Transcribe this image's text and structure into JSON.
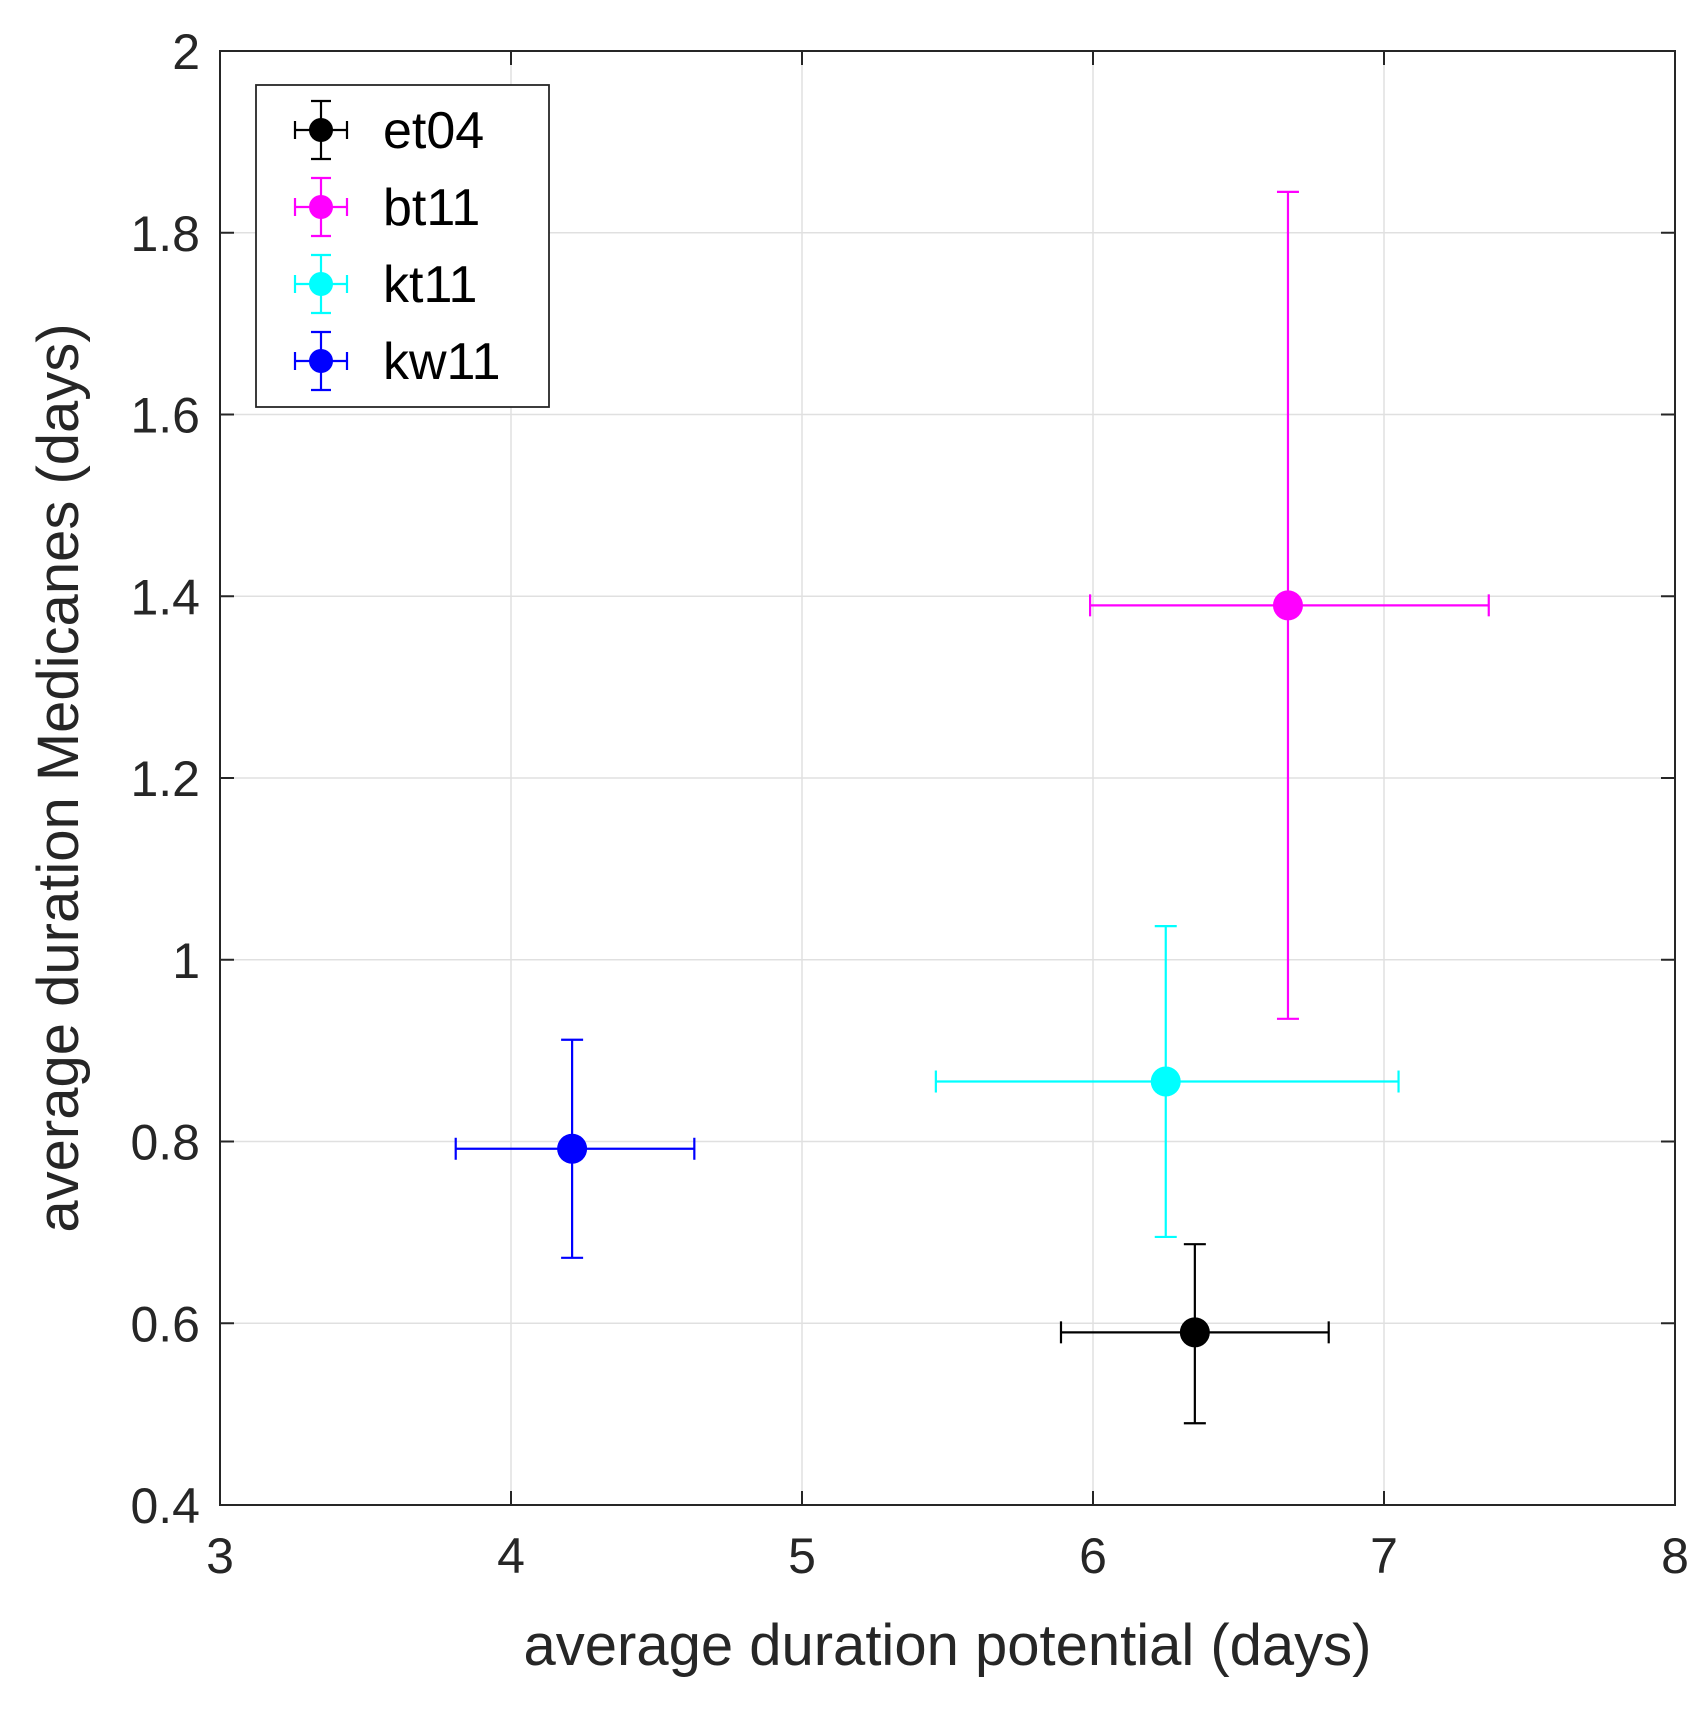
{
  "chart_data": {
    "type": "scatter",
    "title": "",
    "xlabel": "average duration potential (days)",
    "ylabel": "average duration Medicanes (days)",
    "xlim": [
      3,
      8
    ],
    "ylim": [
      0.4,
      2
    ],
    "xticks": [
      3,
      4,
      5,
      6,
      7,
      8
    ],
    "yticks": [
      0.4,
      0.6,
      0.8,
      1,
      1.2,
      1.4,
      1.6,
      1.8,
      2
    ],
    "xtick_labels": [
      "3",
      "4",
      "5",
      "6",
      "7",
      "8"
    ],
    "ytick_labels": [
      "0.4",
      "0.6",
      "0.8",
      "1",
      "1.2",
      "1.4",
      "1.6",
      "1.8",
      "2"
    ],
    "grid": true,
    "legend_position": "top-left",
    "series": [
      {
        "name": "et04",
        "color": "#000000",
        "x": 6.35,
        "y": 0.59,
        "x_err_low": 5.89,
        "x_err_high": 6.81,
        "y_err_low": 0.49,
        "y_err_high": 0.687
      },
      {
        "name": "bt11",
        "color": "#ff00ff",
        "x": 6.67,
        "y": 1.39,
        "x_err_low": 5.99,
        "x_err_high": 7.36,
        "y_err_low": 0.935,
        "y_err_high": 1.845
      },
      {
        "name": "kt11",
        "color": "#00ffff",
        "x": 6.25,
        "y": 0.866,
        "x_err_low": 5.46,
        "x_err_high": 7.05,
        "y_err_low": 0.695,
        "y_err_high": 1.037
      },
      {
        "name": "kw11",
        "color": "#0000ff",
        "x": 4.21,
        "y": 0.792,
        "x_err_low": 3.81,
        "x_err_high": 4.63,
        "y_err_low": 0.672,
        "y_err_high": 0.912
      }
    ]
  }
}
